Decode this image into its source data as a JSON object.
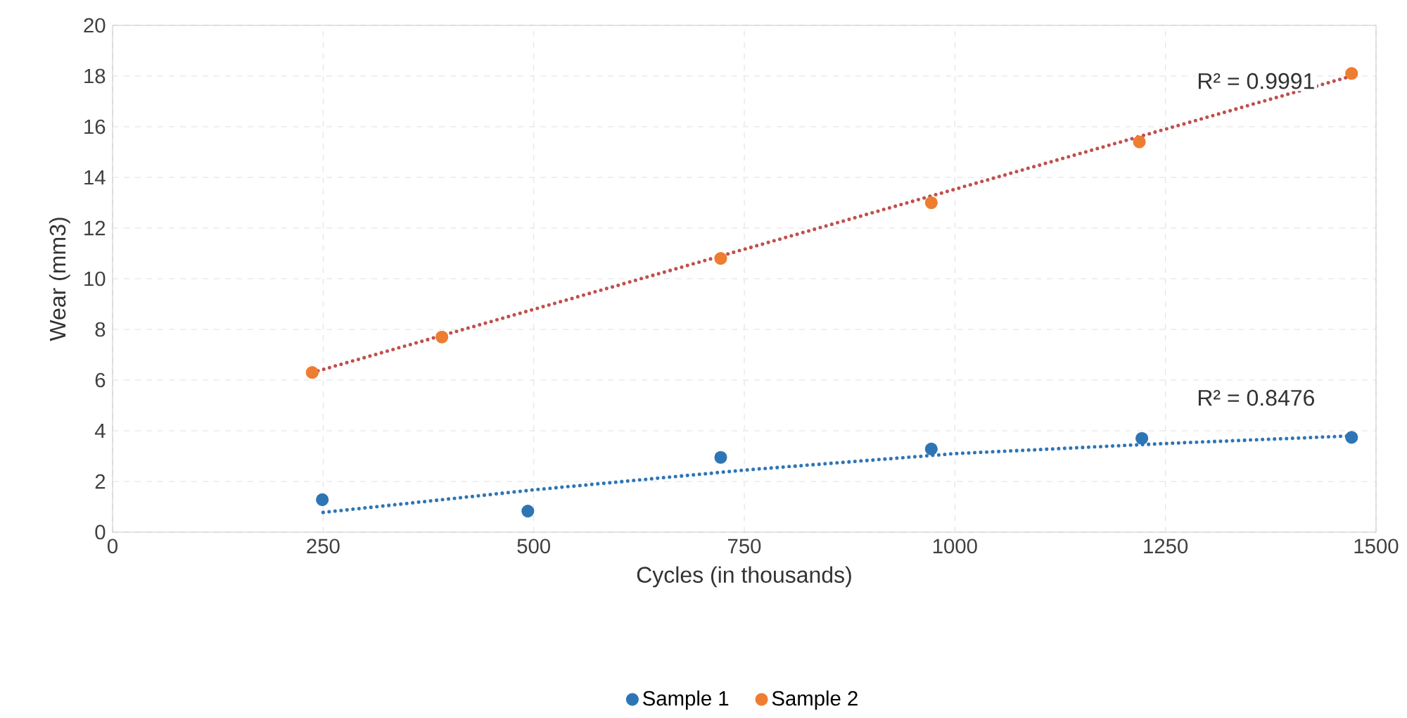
{
  "chart_data": {
    "type": "scatter",
    "xlabel": "Cycles (in thousands)",
    "ylabel": "Wear (mm3)",
    "xlim": [
      0,
      1500
    ],
    "xticks": [
      0,
      250,
      500,
      750,
      1000,
      1250,
      1500
    ],
    "ylim": [
      0,
      20
    ],
    "yticks": [
      0,
      2,
      4,
      6,
      8,
      10,
      12,
      14,
      16,
      18,
      20
    ],
    "grid": true,
    "legend": "bottom",
    "marker": "circle",
    "series": [
      {
        "name": "Sample 1",
        "color": "#2e75b6",
        "x": [
          249,
          493,
          722,
          972,
          1222,
          1471
        ],
        "values": [
          1.28,
          0.83,
          2.95,
          3.28,
          3.7,
          3.74
        ]
      },
      {
        "name": "Sample 2",
        "color": "#ed7d31",
        "x": [
          237,
          391,
          722,
          972,
          1219,
          1471
        ],
        "values": [
          6.3,
          7.7,
          10.8,
          13.0,
          15.4,
          18.1
        ]
      },
      {
        "type": "line",
        "line_style": "dotted",
        "marker": "none",
        "color": "#2e75b6",
        "x": [
          250,
          500,
          750,
          1000,
          1250,
          1471
        ],
        "values": [
          0.78,
          1.67,
          2.45,
          3.1,
          3.5,
          3.8
        ]
      },
      {
        "type": "line",
        "line_style": "dotted",
        "marker": "none",
        "color": "#c0504d",
        "x": [
          237,
          1471
        ],
        "values": [
          6.3,
          18.0
        ]
      }
    ],
    "annotations": [
      "R² = 0.9991",
      "R² = 0.8476"
    ]
  }
}
